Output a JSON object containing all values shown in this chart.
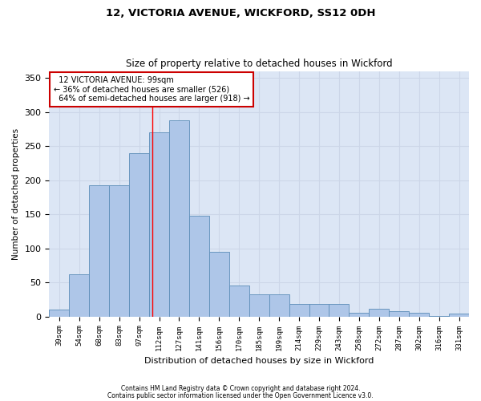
{
  "title1": "12, VICTORIA AVENUE, WICKFORD, SS12 0DH",
  "title2": "Size of property relative to detached houses in Wickford",
  "xlabel": "Distribution of detached houses by size in Wickford",
  "ylabel": "Number of detached properties",
  "categories": [
    "39sqm",
    "54sqm",
    "68sqm",
    "83sqm",
    "97sqm",
    "112sqm",
    "127sqm",
    "141sqm",
    "156sqm",
    "170sqm",
    "185sqm",
    "199sqm",
    "214sqm",
    "229sqm",
    "243sqm",
    "258sqm",
    "272sqm",
    "287sqm",
    "302sqm",
    "316sqm",
    "331sqm"
  ],
  "values": [
    10,
    62,
    193,
    193,
    240,
    270,
    288,
    148,
    95,
    45,
    32,
    32,
    18,
    18,
    18,
    6,
    11,
    8,
    6,
    1,
    4
  ],
  "bar_color": "#aec6e8",
  "bar_edge_color": "#5b8db8",
  "grid_color": "#ccd6e8",
  "background_color": "#dce6f5",
  "property_label": "12 VICTORIA AVENUE: 99sqm",
  "pct_smaller": 36,
  "pct_smaller_n": 526,
  "pct_larger": 64,
  "pct_larger_n": 918,
  "vline_index": 4.67,
  "annotation_box_color": "#cc0000",
  "footer1": "Contains HM Land Registry data © Crown copyright and database right 2024.",
  "footer2": "Contains public sector information licensed under the Open Government Licence v3.0.",
  "ylim": [
    0,
    360
  ],
  "yticks": [
    0,
    50,
    100,
    150,
    200,
    250,
    300,
    350
  ]
}
